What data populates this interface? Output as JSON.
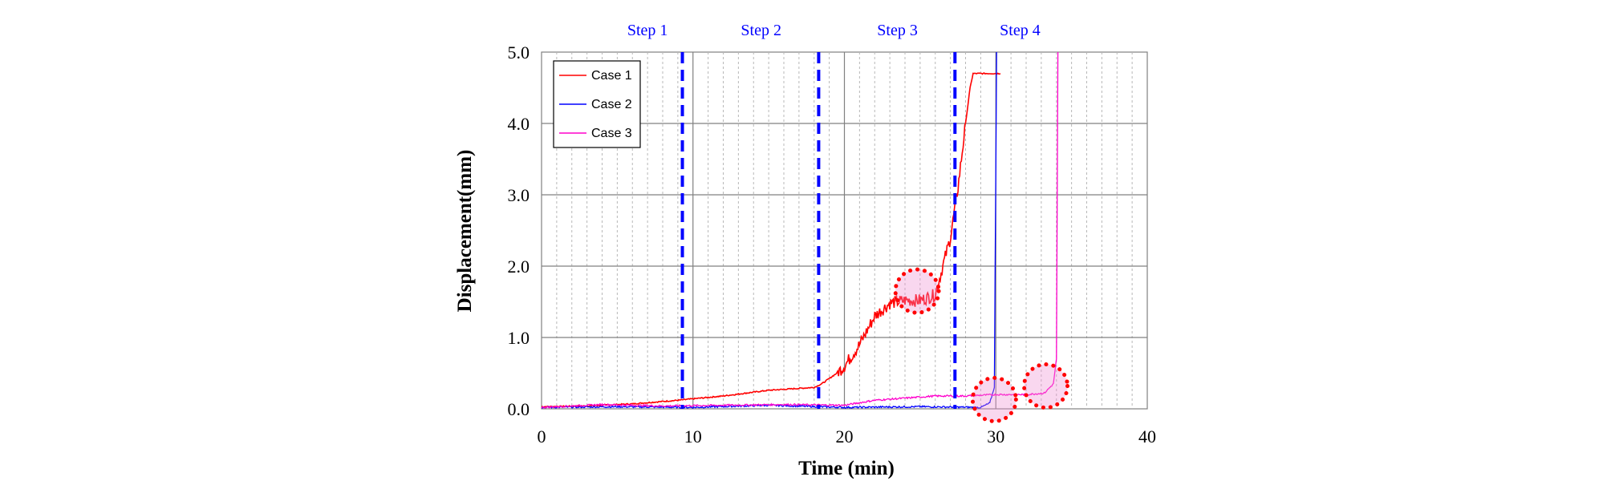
{
  "chart_data": {
    "type": "line",
    "xlabel": "Time (min)",
    "ylabel": "Displacement(mm)",
    "xlim": [
      0,
      40
    ],
    "ylim": [
      0,
      5
    ],
    "x_ticks": [
      "0",
      "10",
      "20",
      "30",
      "40"
    ],
    "y_ticks": [
      "0.0",
      "1.0",
      "2.0",
      "3.0",
      "4.0",
      "5.0"
    ],
    "grid": "major and minor vertical, major horizontal",
    "legend_position": "top-left",
    "steps": [
      {
        "label": "Step 1",
        "center_x": 7
      },
      {
        "label": "Step 2",
        "center_x": 14.5
      },
      {
        "label": "Step 3",
        "center_x": 23.5
      },
      {
        "label": "Step 4",
        "center_x": 31.6
      }
    ],
    "step_boundaries": [
      9.3,
      18.3,
      27.3
    ],
    "series": [
      {
        "name": "Case 1",
        "color": "#ff0000",
        "points": [
          [
            0,
            0.03
          ],
          [
            3,
            0.04
          ],
          [
            6,
            0.07
          ],
          [
            9,
            0.12
          ],
          [
            12,
            0.18
          ],
          [
            15,
            0.26
          ],
          [
            18,
            0.3
          ],
          [
            18.5,
            0.35
          ],
          [
            19.5,
            0.5
          ],
          [
            20,
            0.6
          ],
          [
            21,
            0.9
          ],
          [
            22,
            1.3
          ],
          [
            23,
            1.48
          ],
          [
            24,
            1.52
          ],
          [
            25,
            1.52
          ],
          [
            26,
            1.6
          ],
          [
            27,
            2.4
          ],
          [
            27.5,
            3.1
          ],
          [
            28,
            4.0
          ],
          [
            28.3,
            4.5
          ],
          [
            28.5,
            4.7
          ],
          [
            30.3,
            4.7
          ]
        ]
      },
      {
        "name": "Case 2",
        "color": "#0000ff",
        "points": [
          [
            0,
            0.02
          ],
          [
            5,
            0.03
          ],
          [
            10,
            0.02
          ],
          [
            15,
            0.05
          ],
          [
            20,
            0.02
          ],
          [
            25,
            0.03
          ],
          [
            29,
            0.02
          ],
          [
            29.6,
            0.08
          ],
          [
            29.9,
            0.3
          ],
          [
            30.05,
            5.0
          ]
        ]
      },
      {
        "name": "Case 3",
        "color": "#ff00cc",
        "points": [
          [
            0,
            0.02
          ],
          [
            4,
            0.06
          ],
          [
            8,
            0.04
          ],
          [
            12,
            0.05
          ],
          [
            16,
            0.06
          ],
          [
            20,
            0.05
          ],
          [
            22,
            0.12
          ],
          [
            24,
            0.15
          ],
          [
            26,
            0.18
          ],
          [
            28,
            0.18
          ],
          [
            30,
            0.2
          ],
          [
            32,
            0.2
          ],
          [
            33.2,
            0.22
          ],
          [
            33.8,
            0.35
          ],
          [
            34.0,
            0.7
          ],
          [
            34.1,
            5.0
          ]
        ]
      }
    ],
    "annotations": [
      {
        "type": "dotted-circle",
        "x": 24.8,
        "y": 1.65
      },
      {
        "type": "dotted-circle",
        "x": 29.9,
        "y": 0.13
      },
      {
        "type": "dotted-circle",
        "x": 33.3,
        "y": 0.32
      }
    ]
  }
}
